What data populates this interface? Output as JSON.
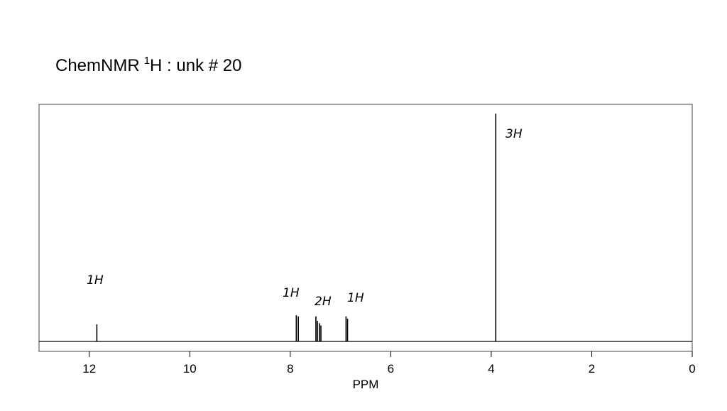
{
  "chart_data": {
    "type": "spectrum",
    "title": {
      "text": "ChemNMR",
      "superscript": "1",
      "rest": "H : unk # 20"
    },
    "x_label": "PPM",
    "x": [
      11.85,
      7.88,
      7.84,
      7.49,
      7.46,
      7.42,
      7.39,
      6.89,
      6.86,
      3.91
    ],
    "values": [
      7.5,
      11.5,
      11,
      11,
      9,
      8,
      7,
      11,
      10,
      100
    ],
    "color": "#000000",
    "xlim": [
      13,
      0
    ],
    "xticks": [
      12,
      10,
      8,
      6,
      4,
      2,
      0
    ],
    "annotations": [
      "1H",
      "1H",
      "2H",
      "1H",
      "3H"
    ]
  }
}
